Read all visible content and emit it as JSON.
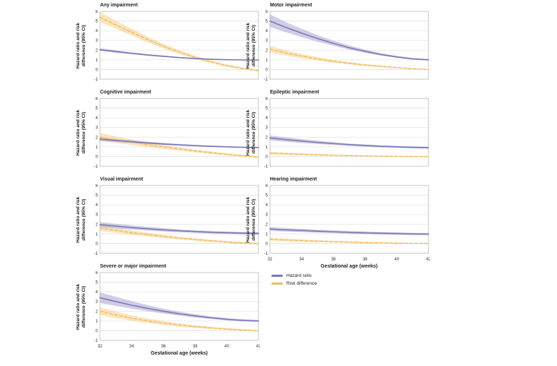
{
  "figure": {
    "y_axis_label_line1": "Hazard ratio and risk",
    "y_axis_label_line2": "difference (95% CI)",
    "x_axis_label": "Gestational age (weeks)",
    "colors": {
      "hazard_line": "#7b78b5",
      "hazard_band": "#a9a6d2",
      "risk_line": "#f0b95e",
      "risk_band": "#f8d492",
      "grid": "#e3e3e3",
      "frame": "#c4c4c4",
      "tick_text": "#333333"
    },
    "legend": [
      {
        "label": "Hazard ratio",
        "color": "#7b78b5"
      },
      {
        "label": "Risk difference",
        "color": "#f0b95e"
      }
    ]
  },
  "chart_data": [
    {
      "type": "line",
      "title": "Any impairment",
      "x": [
        32,
        33,
        34,
        35,
        36,
        37,
        38,
        39,
        40,
        41,
        42
      ],
      "ylim": [
        -1,
        6
      ],
      "yticks": [
        6,
        5,
        4,
        3,
        2,
        1,
        0,
        -1
      ],
      "xticks": [
        32,
        34,
        36,
        38,
        40,
        42
      ],
      "show_x_ticks": false,
      "series": [
        {
          "name": "Risk difference",
          "role": "risk",
          "values": [
            5.4,
            4.6,
            3.85,
            3.1,
            2.4,
            1.8,
            1.25,
            0.8,
            0.4,
            0.1,
            -0.1
          ],
          "lower": [
            4.9,
            4.2,
            3.5,
            2.8,
            2.15,
            1.6,
            1.08,
            0.65,
            0.28,
            0.0,
            -0.2
          ],
          "upper": [
            5.95,
            5.05,
            4.2,
            3.4,
            2.65,
            2.0,
            1.42,
            0.95,
            0.52,
            0.2,
            0.0
          ]
        },
        {
          "name": "Hazard ratio",
          "role": "hazard",
          "values": [
            2.05,
            1.85,
            1.67,
            1.5,
            1.36,
            1.23,
            1.13,
            1.06,
            1.01,
            0.99,
            0.98
          ],
          "lower": [
            1.9,
            1.73,
            1.57,
            1.42,
            1.29,
            1.17,
            1.08,
            1.02,
            0.97,
            0.95,
            0.94
          ],
          "upper": [
            2.2,
            1.98,
            1.78,
            1.59,
            1.44,
            1.3,
            1.19,
            1.11,
            1.06,
            1.04,
            1.03
          ]
        }
      ]
    },
    {
      "type": "line",
      "title": "Motor impairment",
      "x": [
        32,
        33,
        34,
        35,
        36,
        37,
        38,
        39,
        40,
        41,
        42
      ],
      "ylim": [
        -1,
        6
      ],
      "yticks": [
        6,
        5,
        4,
        3,
        2,
        1,
        0,
        -1
      ],
      "xticks": [
        32,
        34,
        36,
        38,
        40,
        42
      ],
      "show_x_ticks": false,
      "series": [
        {
          "name": "Risk difference",
          "role": "risk",
          "values": [
            2.1,
            1.72,
            1.38,
            1.1,
            0.85,
            0.64,
            0.47,
            0.32,
            0.2,
            0.08,
            0.0
          ],
          "lower": [
            1.75,
            1.45,
            1.16,
            0.92,
            0.7,
            0.52,
            0.37,
            0.24,
            0.13,
            0.02,
            -0.06
          ],
          "upper": [
            2.45,
            2.0,
            1.6,
            1.29,
            1.0,
            0.77,
            0.57,
            0.41,
            0.27,
            0.14,
            0.06
          ]
        },
        {
          "name": "Hazard ratio",
          "role": "hazard",
          "values": [
            5.0,
            4.35,
            3.75,
            3.2,
            2.7,
            2.25,
            1.88,
            1.55,
            1.3,
            1.1,
            1.0
          ],
          "lower": [
            4.4,
            3.85,
            3.35,
            2.88,
            2.45,
            2.05,
            1.72,
            1.43,
            1.2,
            1.02,
            0.92
          ],
          "upper": [
            5.7,
            4.9,
            4.2,
            3.55,
            2.98,
            2.48,
            2.06,
            1.69,
            1.41,
            1.19,
            1.09
          ]
        }
      ]
    },
    {
      "type": "line",
      "title": "Cognitive impairment",
      "x": [
        32,
        33,
        34,
        35,
        36,
        37,
        38,
        39,
        40,
        41,
        42
      ],
      "ylim": [
        -1,
        6
      ],
      "yticks": [
        6,
        5,
        4,
        3,
        2,
        1,
        0,
        -1
      ],
      "xticks": [
        32,
        34,
        36,
        38,
        40,
        42
      ],
      "show_x_ticks": false,
      "series": [
        {
          "name": "Risk difference",
          "role": "risk",
          "values": [
            2.0,
            1.73,
            1.47,
            1.22,
            1.0,
            0.78,
            0.58,
            0.4,
            0.23,
            0.08,
            -0.05
          ],
          "lower": [
            1.6,
            1.4,
            1.18,
            0.98,
            0.79,
            0.6,
            0.43,
            0.27,
            0.12,
            -0.02,
            -0.15
          ],
          "upper": [
            2.45,
            2.08,
            1.77,
            1.47,
            1.21,
            0.96,
            0.73,
            0.53,
            0.34,
            0.18,
            0.05
          ]
        },
        {
          "name": "Hazard ratio",
          "role": "hazard",
          "values": [
            1.8,
            1.66,
            1.53,
            1.41,
            1.3,
            1.21,
            1.13,
            1.06,
            1.0,
            0.96,
            0.93
          ],
          "lower": [
            1.62,
            1.5,
            1.39,
            1.29,
            1.2,
            1.12,
            1.05,
            0.99,
            0.94,
            0.9,
            0.87
          ],
          "upper": [
            1.98,
            1.82,
            1.67,
            1.54,
            1.41,
            1.3,
            1.21,
            1.13,
            1.07,
            1.02,
            0.99
          ]
        }
      ]
    },
    {
      "type": "line",
      "title": "Epileptic impairment",
      "x": [
        32,
        33,
        34,
        35,
        36,
        37,
        38,
        39,
        40,
        41,
        42
      ],
      "ylim": [
        -1,
        6
      ],
      "yticks": [
        6,
        5,
        4,
        3,
        2,
        1,
        0,
        -1
      ],
      "xticks": [
        32,
        34,
        36,
        38,
        40,
        42
      ],
      "show_x_ticks": false,
      "series": [
        {
          "name": "Risk difference",
          "role": "risk",
          "values": [
            0.35,
            0.29,
            0.23,
            0.18,
            0.14,
            0.1,
            0.07,
            0.04,
            0.02,
            0.0,
            -0.01
          ],
          "lower": [
            0.22,
            0.17,
            0.13,
            0.09,
            0.06,
            0.03,
            0.01,
            -0.01,
            -0.03,
            -0.05,
            -0.06
          ],
          "upper": [
            0.48,
            0.41,
            0.34,
            0.27,
            0.22,
            0.17,
            0.13,
            0.09,
            0.07,
            0.05,
            0.04
          ]
        },
        {
          "name": "Hazard ratio",
          "role": "hazard",
          "values": [
            1.92,
            1.75,
            1.6,
            1.46,
            1.34,
            1.23,
            1.14,
            1.06,
            1.0,
            0.95,
            0.92
          ],
          "lower": [
            1.66,
            1.52,
            1.4,
            1.29,
            1.19,
            1.1,
            1.02,
            0.95,
            0.9,
            0.85,
            0.82
          ],
          "upper": [
            2.18,
            1.99,
            1.81,
            1.64,
            1.49,
            1.36,
            1.26,
            1.17,
            1.1,
            1.05,
            1.02
          ]
        }
      ]
    },
    {
      "type": "line",
      "title": "Visual impairment",
      "x": [
        32,
        33,
        34,
        35,
        36,
        37,
        38,
        39,
        40,
        41,
        42
      ],
      "ylim": [
        -1,
        6
      ],
      "yticks": [
        6,
        5,
        4,
        3,
        2,
        1,
        0,
        -1
      ],
      "xticks": [
        32,
        34,
        36,
        38,
        40,
        42
      ],
      "show_x_ticks": false,
      "series": [
        {
          "name": "Risk difference",
          "role": "risk",
          "values": [
            1.6,
            1.36,
            1.13,
            0.93,
            0.74,
            0.57,
            0.42,
            0.29,
            0.17,
            0.07,
            -0.02
          ],
          "lower": [
            1.3,
            1.1,
            0.9,
            0.73,
            0.57,
            0.42,
            0.29,
            0.17,
            0.07,
            -0.03,
            -0.12
          ],
          "upper": [
            1.9,
            1.63,
            1.37,
            1.14,
            0.92,
            0.72,
            0.55,
            0.41,
            0.27,
            0.17,
            0.08
          ]
        },
        {
          "name": "Hazard ratio",
          "role": "hazard",
          "values": [
            1.95,
            1.8,
            1.66,
            1.53,
            1.42,
            1.32,
            1.24,
            1.17,
            1.12,
            1.08,
            1.05
          ],
          "lower": [
            1.68,
            1.56,
            1.45,
            1.34,
            1.25,
            1.17,
            1.1,
            1.04,
            0.99,
            0.95,
            0.92
          ],
          "upper": [
            2.22,
            2.05,
            1.88,
            1.73,
            1.6,
            1.48,
            1.38,
            1.3,
            1.25,
            1.21,
            1.18
          ]
        }
      ]
    },
    {
      "type": "line",
      "title": "Hearing impairment",
      "x": [
        32,
        33,
        34,
        35,
        36,
        37,
        38,
        39,
        40,
        41,
        42
      ],
      "ylim": [
        -1,
        6
      ],
      "yticks": [
        6,
        5,
        4,
        3,
        2,
        1,
        0,
        -1
      ],
      "xticks": [
        32,
        34,
        36,
        38,
        40,
        42
      ],
      "show_x_ticks": true,
      "series": [
        {
          "name": "Risk difference",
          "role": "risk",
          "values": [
            0.45,
            0.38,
            0.31,
            0.25,
            0.2,
            0.15,
            0.11,
            0.08,
            0.05,
            0.02,
            0.0
          ],
          "lower": [
            0.3,
            0.25,
            0.19,
            0.15,
            0.11,
            0.07,
            0.04,
            0.01,
            -0.01,
            -0.04,
            -0.06
          ],
          "upper": [
            0.6,
            0.52,
            0.43,
            0.36,
            0.29,
            0.23,
            0.18,
            0.14,
            0.11,
            0.08,
            0.06
          ]
        },
        {
          "name": "Hazard ratio",
          "role": "hazard",
          "values": [
            1.5,
            1.42,
            1.35,
            1.28,
            1.22,
            1.16,
            1.11,
            1.07,
            1.03,
            1.0,
            0.98
          ],
          "lower": [
            1.3,
            1.24,
            1.18,
            1.12,
            1.07,
            1.02,
            0.98,
            0.94,
            0.91,
            0.88,
            0.86
          ],
          "upper": [
            1.7,
            1.61,
            1.52,
            1.44,
            1.37,
            1.3,
            1.25,
            1.2,
            1.16,
            1.12,
            1.1
          ]
        }
      ]
    },
    {
      "type": "line",
      "title": "Severe or major impairment",
      "x": [
        32,
        33,
        34,
        35,
        36,
        37,
        38,
        39,
        40,
        41,
        42
      ],
      "ylim": [
        -1,
        6
      ],
      "yticks": [
        6,
        5,
        4,
        3,
        2,
        1,
        0,
        -1
      ],
      "xticks": [
        32,
        34,
        36,
        38,
        40,
        42
      ],
      "show_x_ticks": true,
      "series": [
        {
          "name": "Risk difference",
          "role": "risk",
          "values": [
            2.0,
            1.62,
            1.29,
            1.01,
            0.78,
            0.58,
            0.42,
            0.28,
            0.16,
            0.06,
            -0.02
          ],
          "lower": [
            1.6,
            1.3,
            1.02,
            0.79,
            0.59,
            0.42,
            0.28,
            0.16,
            0.06,
            -0.03,
            -0.11
          ],
          "upper": [
            2.4,
            1.97,
            1.58,
            1.26,
            0.98,
            0.75,
            0.56,
            0.4,
            0.27,
            0.15,
            0.05
          ]
        },
        {
          "name": "Hazard ratio",
          "role": "hazard",
          "values": [
            3.4,
            3.0,
            2.63,
            2.3,
            2.0,
            1.74,
            1.52,
            1.33,
            1.17,
            1.06,
            1.0
          ],
          "lower": [
            2.85,
            2.55,
            2.27,
            2.0,
            1.76,
            1.55,
            1.36,
            1.2,
            1.06,
            0.96,
            0.9
          ],
          "upper": [
            3.95,
            3.5,
            3.05,
            2.64,
            2.27,
            1.96,
            1.7,
            1.48,
            1.3,
            1.17,
            1.1
          ]
        }
      ]
    }
  ]
}
